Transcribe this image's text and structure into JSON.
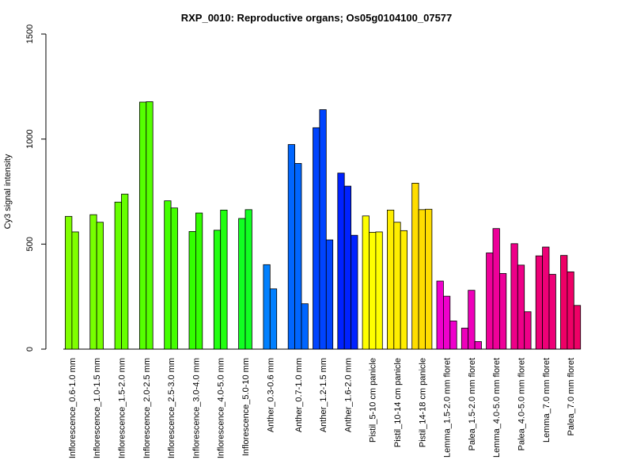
{
  "chart_data": {
    "type": "bar",
    "title": "RXP_0010: Reproductive organs; Os05g0104100_07577",
    "xlabel": "",
    "ylabel": "Cy3 signal intensity",
    "ylim": [
      0,
      1500
    ],
    "yticks": [
      0,
      500,
      1000,
      1500
    ],
    "grid": false,
    "legend": "none",
    "groups": [
      {
        "label": "Inflorescence_0.6-1.0 mm",
        "color": "#80ff00",
        "values": [
          632,
          558
        ]
      },
      {
        "label": "Inflorescence_1.0-1.5 mm",
        "color": "#77ff00",
        "values": [
          640,
          604
        ]
      },
      {
        "label": "Inflorescence_1.5-2.0 mm",
        "color": "#66ff00",
        "values": [
          700,
          738
        ]
      },
      {
        "label": "Inflorescence_2.0-2.5 mm",
        "color": "#55ff00",
        "values": [
          1176,
          1178
        ]
      },
      {
        "label": "Inflorescence_2.5-3.0 mm",
        "color": "#44ff00",
        "values": [
          706,
          672
        ]
      },
      {
        "label": "Inflorescence_3.0-4.0 mm",
        "color": "#33ff00",
        "values": [
          560,
          648
        ]
      },
      {
        "label": "Inflorescence_4.0-5.0 mm",
        "color": "#22ff11",
        "values": [
          566,
          662
        ]
      },
      {
        "label": "Inflorescence_5.0-10 mm",
        "color": "#11ff22",
        "values": [
          622,
          664
        ]
      },
      {
        "label": "Anther_0.3-0.6 mm",
        "color": "#0080ff",
        "values": [
          402,
          287
        ]
      },
      {
        "label": "Anther_0.7-1.0 mm",
        "color": "#0066ff",
        "values": [
          974,
          884,
          216
        ]
      },
      {
        "label": "Anther_1.2-1.5 mm",
        "color": "#0044ff",
        "values": [
          1054,
          1140,
          520
        ]
      },
      {
        "label": "Anther_1.6-2.0 mm",
        "color": "#0022ff",
        "values": [
          838,
          776,
          542
        ]
      },
      {
        "label": "Pistil_5-10 cm panicle",
        "color": "#ffff00",
        "values": [
          634,
          556,
          558
        ]
      },
      {
        "label": "Pistil_10-14 cm panicle",
        "color": "#ffee00",
        "values": [
          662,
          604,
          564
        ]
      },
      {
        "label": "Pistil_14-18 cm panicle",
        "color": "#ffdd00",
        "values": [
          790,
          664,
          666
        ]
      },
      {
        "label": "Lemma_1.5-2.0 mm floret",
        "color": "#ee00cc",
        "values": [
          324,
          252,
          134
        ]
      },
      {
        "label": "Palea_1.5-2.0 mm floret",
        "color": "#ee00bb",
        "values": [
          100,
          280,
          36
        ]
      },
      {
        "label": "Lemma_4.0-5.0 mm floret",
        "color": "#ee0099",
        "values": [
          458,
          574,
          360
        ]
      },
      {
        "label": "Palea_4.0-5.0 mm floret",
        "color": "#ee0088",
        "values": [
          502,
          400,
          178
        ]
      },
      {
        "label": "Lemma_7.0 mm floret",
        "color": "#ee0077",
        "values": [
          444,
          486,
          356
        ]
      },
      {
        "label": "Palea_7.0 mm floret",
        "color": "#ee0066",
        "values": [
          446,
          368,
          208
        ]
      }
    ]
  }
}
